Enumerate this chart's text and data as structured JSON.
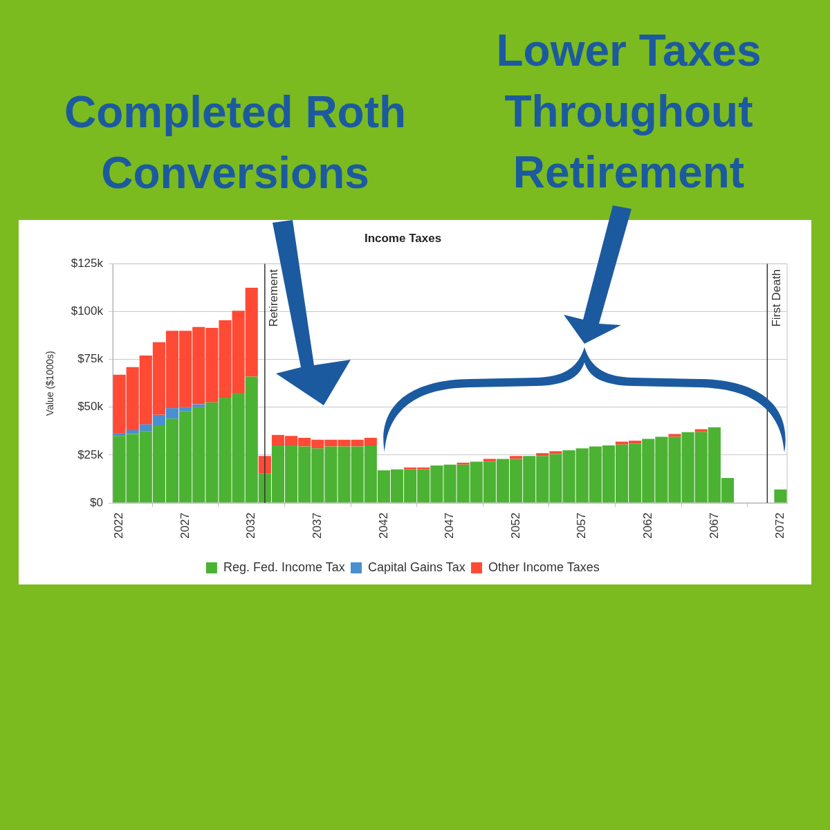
{
  "chart_data": {
    "type": "bar",
    "title": "Income Taxes",
    "ylabel": "Value ($1000s)",
    "annotations": [
      "Completed Roth Conversions",
      "Lower Taxes Throughout Retirement"
    ],
    "x": [
      2022,
      2023,
      2024,
      2025,
      2026,
      2027,
      2028,
      2029,
      2030,
      2031,
      2032,
      2033,
      2034,
      2035,
      2036,
      2037,
      2038,
      2039,
      2040,
      2041,
      2042,
      2043,
      2044,
      2045,
      2046,
      2047,
      2048,
      2049,
      2050,
      2051,
      2052,
      2053,
      2054,
      2055,
      2056,
      2057,
      2058,
      2059,
      2060,
      2061,
      2062,
      2063,
      2064,
      2065,
      2066,
      2067,
      2068,
      2069,
      2070,
      2071,
      2072
    ],
    "xlim": [
      2021.5,
      2072.5
    ],
    "xticks": [
      2022,
      2027,
      2032,
      2037,
      2042,
      2047,
      2052,
      2057,
      2062,
      2067,
      2072
    ],
    "ylim": [
      0,
      125
    ],
    "yticks": [
      {
        "value": 0,
        "label": "$0"
      },
      {
        "value": 25,
        "label": "$25k"
      },
      {
        "value": 50,
        "label": "$50k"
      },
      {
        "value": 75,
        "label": "$75k"
      },
      {
        "value": 100,
        "label": "$100k"
      },
      {
        "value": 125,
        "label": "$125k"
      }
    ],
    "stacked": true,
    "grid": "y",
    "legend": "bottom",
    "series": [
      {
        "name": "Reg. Fed. Income Tax",
        "color": "#4cb233",
        "values": [
          35,
          36,
          37.5,
          40.5,
          44,
          48,
          50,
          52.5,
          55,
          57.5,
          66,
          15.5,
          30,
          30,
          29.5,
          28.5,
          29.5,
          29.5,
          29.5,
          30,
          17,
          17.5,
          17.5,
          17.5,
          19.5,
          20,
          20,
          21.5,
          21.5,
          23,
          23,
          24.5,
          24.5,
          25.5,
          27.5,
          28.5,
          29.5,
          30,
          30.5,
          31,
          33.5,
          34.5,
          34.5,
          37,
          37,
          39.5,
          13,
          null,
          null,
          null,
          7
        ]
      },
      {
        "name": "Capital Gains Tax",
        "color": "#4a8fd0",
        "values": [
          1.5,
          2,
          3.5,
          5.5,
          5.5,
          2,
          1.5,
          null,
          null,
          null,
          null,
          null,
          null,
          null,
          null,
          null,
          null,
          null,
          null,
          null,
          null,
          null,
          null,
          null,
          null,
          null,
          null,
          null,
          null,
          null,
          null,
          null,
          null,
          null,
          null,
          null,
          null,
          null,
          null,
          null,
          null,
          null,
          null,
          null,
          null,
          null,
          null,
          null,
          null,
          null,
          null
        ]
      },
      {
        "name": "Other Income Taxes",
        "color": "#ff4a36",
        "values": [
          30.5,
          33,
          36,
          38,
          40.5,
          40,
          40.5,
          39,
          40.5,
          43,
          46.5,
          9,
          5.5,
          5,
          4.5,
          4.5,
          3.5,
          3.5,
          3.5,
          4,
          null,
          null,
          1,
          1,
          null,
          null,
          1,
          null,
          1.5,
          null,
          1.5,
          null,
          1.5,
          1.5,
          null,
          null,
          null,
          null,
          1.5,
          1.5,
          null,
          null,
          1.5,
          null,
          1.5,
          null,
          null,
          null,
          null,
          null,
          null
        ]
      }
    ],
    "ref_lines": [
      {
        "axis": "x",
        "value": 2033,
        "label": "Retirement",
        "color": "#333333"
      },
      {
        "axis": "x",
        "value": 2071,
        "label": "First Death",
        "color": "#333333"
      }
    ]
  }
}
